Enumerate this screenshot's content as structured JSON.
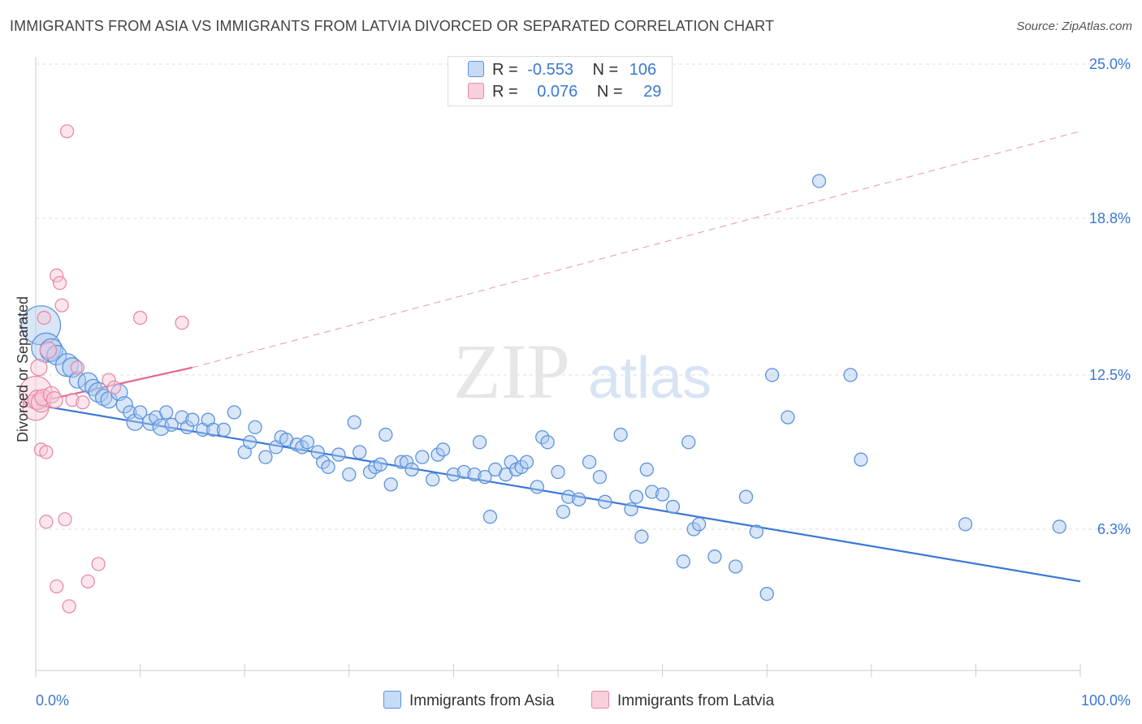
{
  "title": "IMMIGRANTS FROM ASIA VS IMMIGRANTS FROM LATVIA DIVORCED OR SEPARATED CORRELATION CHART",
  "source": "Source: ZipAtlas.com",
  "watermark": {
    "zip": "ZIP",
    "atlas": "atlas"
  },
  "legend": {
    "asia": {
      "r_label": "R =",
      "r_value": "-0.553",
      "n_label": "N =",
      "n_value": "106"
    },
    "latvia": {
      "r_label": "R =",
      "r_value": "0.076",
      "n_label": "N =",
      "n_value": "29"
    }
  },
  "colors": {
    "asia": "#5b93dc",
    "latvia": "#e88aa6",
    "asia_line": "#3a78d4",
    "latvia_line": "#e06890",
    "tick_label": "#3a78d4"
  },
  "chart_data": {
    "type": "scatter",
    "title": "IMMIGRANTS FROM ASIA VS IMMIGRANTS FROM LATVIA DIVORCED OR SEPARATED CORRELATION CHART",
    "xlabel": "",
    "ylabel": "Divorced or Separated",
    "xlim": [
      0,
      100
    ],
    "ylim": [
      0,
      26
    ],
    "x_tick_labels": [
      "0.0%",
      "100.0%"
    ],
    "y_ticks": [
      6.3,
      12.5,
      18.8,
      25.0
    ],
    "y_tick_labels": [
      "6.3%",
      "12.5%",
      "18.8%",
      "25.0%"
    ],
    "grid": true,
    "legend_position": "top-center",
    "series": [
      {
        "name": "Immigrants from Asia",
        "color": "#5b93dc",
        "trend": {
          "x": [
            0,
            100
          ],
          "y": [
            11.3,
            4.2
          ]
        },
        "points": [
          [
            0.5,
            14.5,
            24
          ],
          [
            1,
            13.6,
            18
          ],
          [
            1.5,
            13.5,
            14
          ],
          [
            2,
            13.3,
            12
          ],
          [
            3,
            12.9,
            14
          ],
          [
            3.5,
            12.8,
            12
          ],
          [
            4,
            12.3,
            10
          ],
          [
            5,
            12.2,
            12
          ],
          [
            5.5,
            12.0,
            10
          ],
          [
            6,
            11.8,
            12
          ],
          [
            6.5,
            11.6,
            10
          ],
          [
            7,
            11.5,
            10
          ],
          [
            8,
            11.8,
            10
          ],
          [
            8.5,
            11.3,
            10
          ],
          [
            9,
            11.0,
            8
          ],
          [
            9.5,
            10.6,
            10
          ],
          [
            10,
            11.0,
            8
          ],
          [
            11,
            10.6,
            10
          ],
          [
            11.5,
            10.8,
            8
          ],
          [
            12,
            10.4,
            10
          ],
          [
            12.5,
            11.0,
            8
          ],
          [
            13,
            10.5,
            8
          ],
          [
            14,
            10.8,
            8
          ],
          [
            14.5,
            10.4,
            8
          ],
          [
            15,
            10.7,
            8
          ],
          [
            16,
            10.3,
            8
          ],
          [
            16.5,
            10.7,
            8
          ],
          [
            17,
            10.3,
            8
          ],
          [
            18,
            10.3,
            8
          ],
          [
            19,
            11.0,
            8
          ],
          [
            20,
            9.4,
            8
          ],
          [
            20.5,
            9.8,
            8
          ],
          [
            21,
            10.4,
            8
          ],
          [
            22,
            9.2,
            8
          ],
          [
            23,
            9.6,
            8
          ],
          [
            23.5,
            10.0,
            8
          ],
          [
            24,
            9.9,
            8
          ],
          [
            25,
            9.7,
            8
          ],
          [
            25.5,
            9.6,
            8
          ],
          [
            26,
            9.8,
            8
          ],
          [
            27,
            9.4,
            8
          ],
          [
            27.5,
            9.0,
            8
          ],
          [
            28,
            8.8,
            8
          ],
          [
            29,
            9.3,
            8
          ],
          [
            30,
            8.5,
            8
          ],
          [
            30.5,
            10.6,
            8
          ],
          [
            31,
            9.4,
            8
          ],
          [
            32,
            8.6,
            8
          ],
          [
            32.5,
            8.8,
            8
          ],
          [
            33,
            8.9,
            8
          ],
          [
            33.5,
            10.1,
            8
          ],
          [
            34,
            8.1,
            8
          ],
          [
            35,
            9.0,
            8
          ],
          [
            35.5,
            9.0,
            8
          ],
          [
            36,
            8.7,
            8
          ],
          [
            37,
            9.2,
            8
          ],
          [
            38,
            8.3,
            8
          ],
          [
            38.5,
            9.3,
            8
          ],
          [
            39,
            9.5,
            8
          ],
          [
            40,
            8.5,
            8
          ],
          [
            41,
            8.6,
            8
          ],
          [
            42,
            8.5,
            8
          ],
          [
            42.5,
            9.8,
            8
          ],
          [
            43,
            8.4,
            8
          ],
          [
            43.5,
            6.8,
            8
          ],
          [
            44,
            8.7,
            8
          ],
          [
            45,
            8.5,
            8
          ],
          [
            45.5,
            9.0,
            8
          ],
          [
            46,
            8.7,
            8
          ],
          [
            46.5,
            8.8,
            8
          ],
          [
            47,
            9.0,
            8
          ],
          [
            48,
            8.0,
            8
          ],
          [
            48.5,
            10.0,
            8
          ],
          [
            49,
            9.8,
            8
          ],
          [
            50,
            8.6,
            8
          ],
          [
            50.5,
            7.0,
            8
          ],
          [
            51,
            7.6,
            8
          ],
          [
            52,
            7.5,
            8
          ],
          [
            53,
            9.0,
            8
          ],
          [
            54,
            8.4,
            8
          ],
          [
            54.5,
            7.4,
            8
          ],
          [
            56,
            10.1,
            8
          ],
          [
            57,
            7.1,
            8
          ],
          [
            57.5,
            7.6,
            8
          ],
          [
            58,
            6.0,
            8
          ],
          [
            58.5,
            8.7,
            8
          ],
          [
            59,
            7.8,
            8
          ],
          [
            60,
            7.7,
            8
          ],
          [
            61,
            7.2,
            8
          ],
          [
            62,
            5.0,
            8
          ],
          [
            62.5,
            9.8,
            8
          ],
          [
            63,
            6.3,
            8
          ],
          [
            63.5,
            6.5,
            8
          ],
          [
            65,
            5.2,
            8
          ],
          [
            67,
            4.8,
            8
          ],
          [
            68,
            7.6,
            8
          ],
          [
            69,
            6.2,
            8
          ],
          [
            70,
            3.7,
            8
          ],
          [
            70.5,
            12.5,
            8
          ],
          [
            72,
            10.8,
            8
          ],
          [
            75,
            20.3,
            8
          ],
          [
            78,
            12.5,
            8
          ],
          [
            79,
            9.1,
            8
          ],
          [
            89,
            6.5,
            8
          ],
          [
            98,
            6.4,
            8
          ]
        ]
      },
      {
        "name": "Immigrants from Latvia",
        "color": "#e88aa6",
        "trend": {
          "x": [
            0,
            15
          ],
          "y": [
            11.4,
            12.8
          ],
          "dashed_to": [
            100,
            22.3
          ]
        },
        "points": [
          [
            0,
            11.8,
            20
          ],
          [
            0,
            11.2,
            16
          ],
          [
            0.2,
            11.5,
            12
          ],
          [
            0.3,
            12.8,
            10
          ],
          [
            0.5,
            11.4,
            12
          ],
          [
            0.5,
            9.5,
            8
          ],
          [
            0.7,
            11.6,
            10
          ],
          [
            0.8,
            14.8,
            8
          ],
          [
            1,
            9.4,
            8
          ],
          [
            1,
            6.6,
            8
          ],
          [
            1.2,
            13.5,
            10
          ],
          [
            1.5,
            11.7,
            10
          ],
          [
            1.8,
            11.5,
            10
          ],
          [
            2,
            4.0,
            8
          ],
          [
            2,
            16.5,
            8
          ],
          [
            2.3,
            16.2,
            8
          ],
          [
            2.5,
            15.3,
            8
          ],
          [
            2.8,
            6.7,
            8
          ],
          [
            3,
            22.3,
            8
          ],
          [
            3.2,
            3.2,
            8
          ],
          [
            3.5,
            11.5,
            8
          ],
          [
            4,
            12.8,
            8
          ],
          [
            4.5,
            11.4,
            8
          ],
          [
            5,
            4.2,
            8
          ],
          [
            6,
            4.9,
            8
          ],
          [
            7,
            12.3,
            8
          ],
          [
            7.5,
            12.0,
            8
          ],
          [
            10,
            14.8,
            8
          ],
          [
            14,
            14.6,
            8
          ]
        ]
      }
    ]
  }
}
